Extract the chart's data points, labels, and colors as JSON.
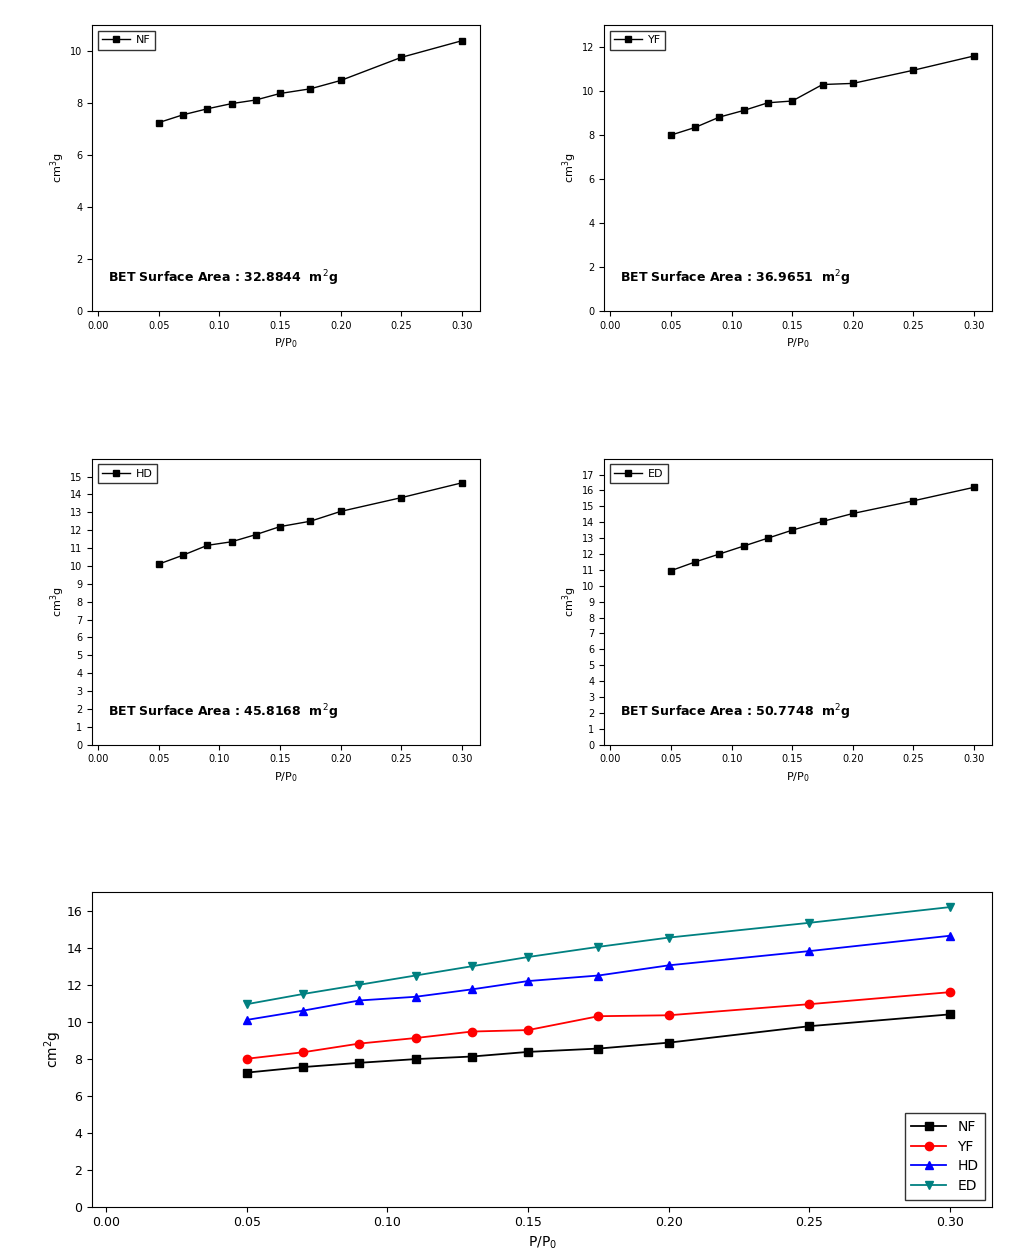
{
  "NF": {
    "label": "NF",
    "x": [
      0.05,
      0.07,
      0.09,
      0.11,
      0.13,
      0.15,
      0.175,
      0.2,
      0.25,
      0.3
    ],
    "y": [
      7.25,
      7.55,
      7.78,
      7.98,
      8.12,
      8.37,
      8.55,
      8.87,
      9.76,
      10.4
    ],
    "color": "black",
    "marker": "s",
    "ylim": [
      0,
      11
    ],
    "yticks": [
      0,
      2,
      4,
      6,
      8,
      10
    ],
    "bet_area": "32.8844"
  },
  "YF": {
    "label": "YF",
    "x": [
      0.05,
      0.07,
      0.09,
      0.11,
      0.13,
      0.15,
      0.175,
      0.2,
      0.25,
      0.3
    ],
    "y": [
      8.0,
      8.35,
      8.82,
      9.12,
      9.47,
      9.55,
      10.3,
      10.35,
      10.95,
      11.6
    ],
    "color": "black",
    "marker": "s",
    "ylim": [
      0,
      13
    ],
    "yticks": [
      0,
      2,
      4,
      6,
      8,
      10,
      12
    ],
    "bet_area": "36.9651"
  },
  "HD": {
    "label": "HD",
    "x": [
      0.05,
      0.07,
      0.09,
      0.11,
      0.13,
      0.15,
      0.175,
      0.2,
      0.25,
      0.3
    ],
    "y": [
      10.1,
      10.6,
      11.15,
      11.35,
      11.75,
      12.2,
      12.5,
      13.05,
      13.82,
      14.65
    ],
    "color": "black",
    "marker": "s",
    "ylim": [
      0,
      16
    ],
    "yticks": [
      0,
      1,
      2,
      3,
      4,
      5,
      6,
      7,
      8,
      9,
      10,
      11,
      12,
      13,
      14,
      15
    ],
    "bet_area": "45.8168"
  },
  "ED": {
    "label": "ED",
    "x": [
      0.05,
      0.07,
      0.09,
      0.11,
      0.13,
      0.15,
      0.175,
      0.2,
      0.25,
      0.3
    ],
    "y": [
      10.95,
      11.5,
      12.0,
      12.5,
      13.0,
      13.5,
      14.05,
      14.55,
      15.35,
      16.2
    ],
    "color": "black",
    "marker": "s",
    "ylim": [
      0,
      18
    ],
    "yticks": [
      0,
      1,
      2,
      3,
      4,
      5,
      6,
      7,
      8,
      9,
      10,
      11,
      12,
      13,
      14,
      15,
      16,
      17
    ],
    "bet_area": "50.7748"
  },
  "combined": {
    "NF": {
      "color": "black",
      "marker": "s"
    },
    "YF": {
      "color": "red",
      "marker": "o"
    },
    "HD": {
      "color": "blue",
      "marker": "^"
    },
    "ED": {
      "color": "teal",
      "marker": "v"
    }
  },
  "xticks": [
    0.0,
    0.05,
    0.1,
    0.15,
    0.2,
    0.25,
    0.3
  ],
  "xlabel": "P/P$_0$",
  "ylabel_small": "cm$^3$g",
  "ylabel_combined": "cm$^2$g",
  "bg_color": "#ffffff",
  "plot_bg": "white"
}
